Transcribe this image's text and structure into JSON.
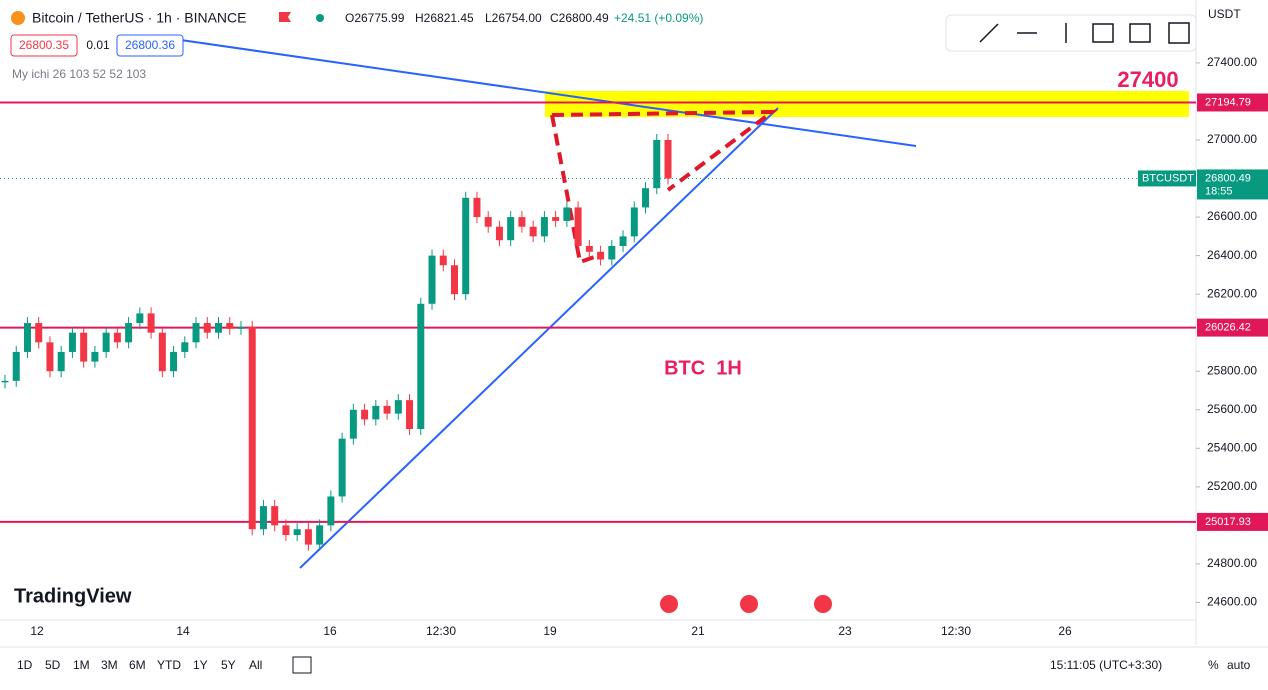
{
  "header": {
    "symbol": "Bitcoin / TetherUS · 1h · BINANCE",
    "open": "O26775.99",
    "high": "H26821.45",
    "low": "L26754.00",
    "close": "C26800.49",
    "change": "+24.51 (+0.09%)",
    "sell": "26800.35",
    "spread": "0.01",
    "buy": "26800.36",
    "indicator": "My ichi 26 103 52 52 103",
    "currency": "USDT"
  },
  "chart_data": {
    "type": "candlestick",
    "closes": [
      25750,
      25900,
      26050,
      25950,
      25800,
      25900,
      26000,
      25850,
      25900,
      26000,
      25950,
      26050,
      26100,
      26000,
      25800,
      25900,
      25950,
      26050,
      26000,
      26050,
      26020,
      26030,
      24980,
      25100,
      25000,
      24950,
      24980,
      24900,
      25000,
      25150,
      25450,
      25600,
      25550,
      25620,
      25580,
      25650,
      25500,
      26150,
      26400,
      26350,
      26200,
      26700,
      26600,
      26550,
      26480,
      26600,
      26550,
      26500,
      26600,
      26580,
      26650,
      26450,
      26420,
      26380,
      26450,
      26500,
      26650,
      26750,
      27000,
      26800
    ],
    "ylim": [
      24500,
      27600
    ],
    "yticks": [
      {
        "value": 27400,
        "label": "27400.00"
      },
      {
        "value": 27000,
        "label": "27000.00"
      },
      {
        "value": 26600,
        "label": "26600.00"
      },
      {
        "value": 26400,
        "label": "26400.00"
      },
      {
        "value": 26200,
        "label": "26200.00"
      },
      {
        "value": 25800,
        "label": "25800.00"
      },
      {
        "value": 25600,
        "label": "25600.00"
      },
      {
        "value": 25400,
        "label": "25400.00"
      },
      {
        "value": 25200,
        "label": "25200.00"
      },
      {
        "value": 24800,
        "label": "24800.00"
      },
      {
        "value": 24600,
        "label": "24600.00"
      }
    ],
    "levels": [
      27194.79,
      26026.42,
      25017.93
    ],
    "last_price": 26800.49,
    "last_symbol": "BTCUSDT",
    "countdown": "18:55",
    "time_labels": [
      "12",
      "14",
      "16",
      "12:30",
      "19",
      "21",
      "23",
      "12:30",
      "26"
    ],
    "annotations": [
      "27400",
      "BTC  1H"
    ]
  },
  "footer": {
    "ranges": [
      "1D",
      "5D",
      "1M",
      "3M",
      "6M",
      "YTD",
      "1Y",
      "5Y",
      "All"
    ],
    "clock": "15:11:05 (UTC+3:30)",
    "percent": "%",
    "auto": "auto"
  },
  "brand": "TradingView"
}
